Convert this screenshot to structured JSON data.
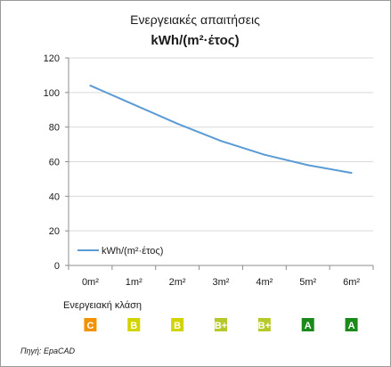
{
  "chart_data": {
    "type": "line",
    "title": "Ενεργειακές απαιτήσεις",
    "subtitle": "kWh/(m²·έτος)",
    "categories": [
      "0m²",
      "1m²",
      "2m²",
      "3m²",
      "4m²",
      "5m²",
      "6m²"
    ],
    "series": [
      {
        "name": "kWh/(m²·έτος)",
        "values": [
          104,
          93,
          82,
          72,
          64,
          58,
          53.5
        ],
        "color": "#5b9bd5"
      }
    ],
    "ylim": [
      0,
      120
    ],
    "yticks": [
      "0",
      "20",
      "40",
      "60",
      "80",
      "100",
      "120"
    ],
    "grid": true,
    "legend_position": "bottom-left"
  },
  "energy_class": {
    "label": "Ενεργειακή κλάση",
    "badges": [
      {
        "text": "C",
        "color": "#f39200"
      },
      {
        "text": "B",
        "color": "#d2d400"
      },
      {
        "text": "B",
        "color": "#d2d400"
      },
      {
        "text": "B+",
        "color": "#b6c92a"
      },
      {
        "text": "B+",
        "color": "#b6c92a"
      },
      {
        "text": "A",
        "color": "#1a8a1a"
      },
      {
        "text": "A",
        "color": "#1a8a1a"
      }
    ]
  },
  "source": "Πηγή: EpaCAD"
}
